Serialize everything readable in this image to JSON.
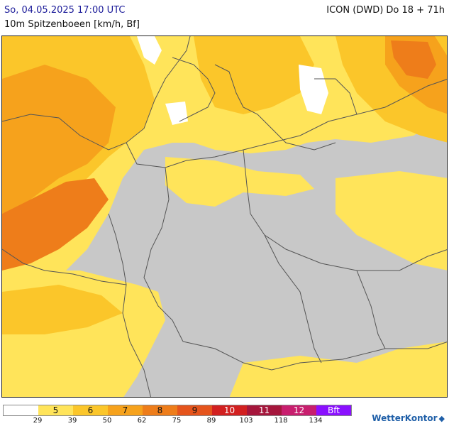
{
  "header": {
    "datetime": "So, 04.05.2025 17:00 UTC",
    "model": "ICON (DWD) Do 18 + 71h",
    "parameter": "10m Spitzenboeen [km/h, Bf]"
  },
  "legend": {
    "classes": [
      {
        "label": "",
        "color": "#ffffff"
      },
      {
        "label": "5",
        "color": "#ffe45a"
      },
      {
        "label": "6",
        "color": "#fbc62a"
      },
      {
        "label": "7",
        "color": "#f6a21c"
      },
      {
        "label": "8",
        "color": "#ee7d1a"
      },
      {
        "label": "9",
        "color": "#e5541c"
      },
      {
        "label": "10",
        "color": "#d22020"
      },
      {
        "label": "11",
        "color": "#a5163c"
      },
      {
        "label": "12",
        "color": "#c81e6e"
      },
      {
        "label": "Bft",
        "color": "#8a10ff"
      }
    ],
    "ticks": [
      "29",
      "39",
      "50",
      "62",
      "75",
      "89",
      "103",
      "118",
      "134"
    ]
  },
  "colors": {
    "no_data_gray": "#c8c8c8",
    "borders": "#555555"
  },
  "brand": {
    "name": "WetterKontor",
    "icon": "wetterkontor-logo-icon"
  }
}
